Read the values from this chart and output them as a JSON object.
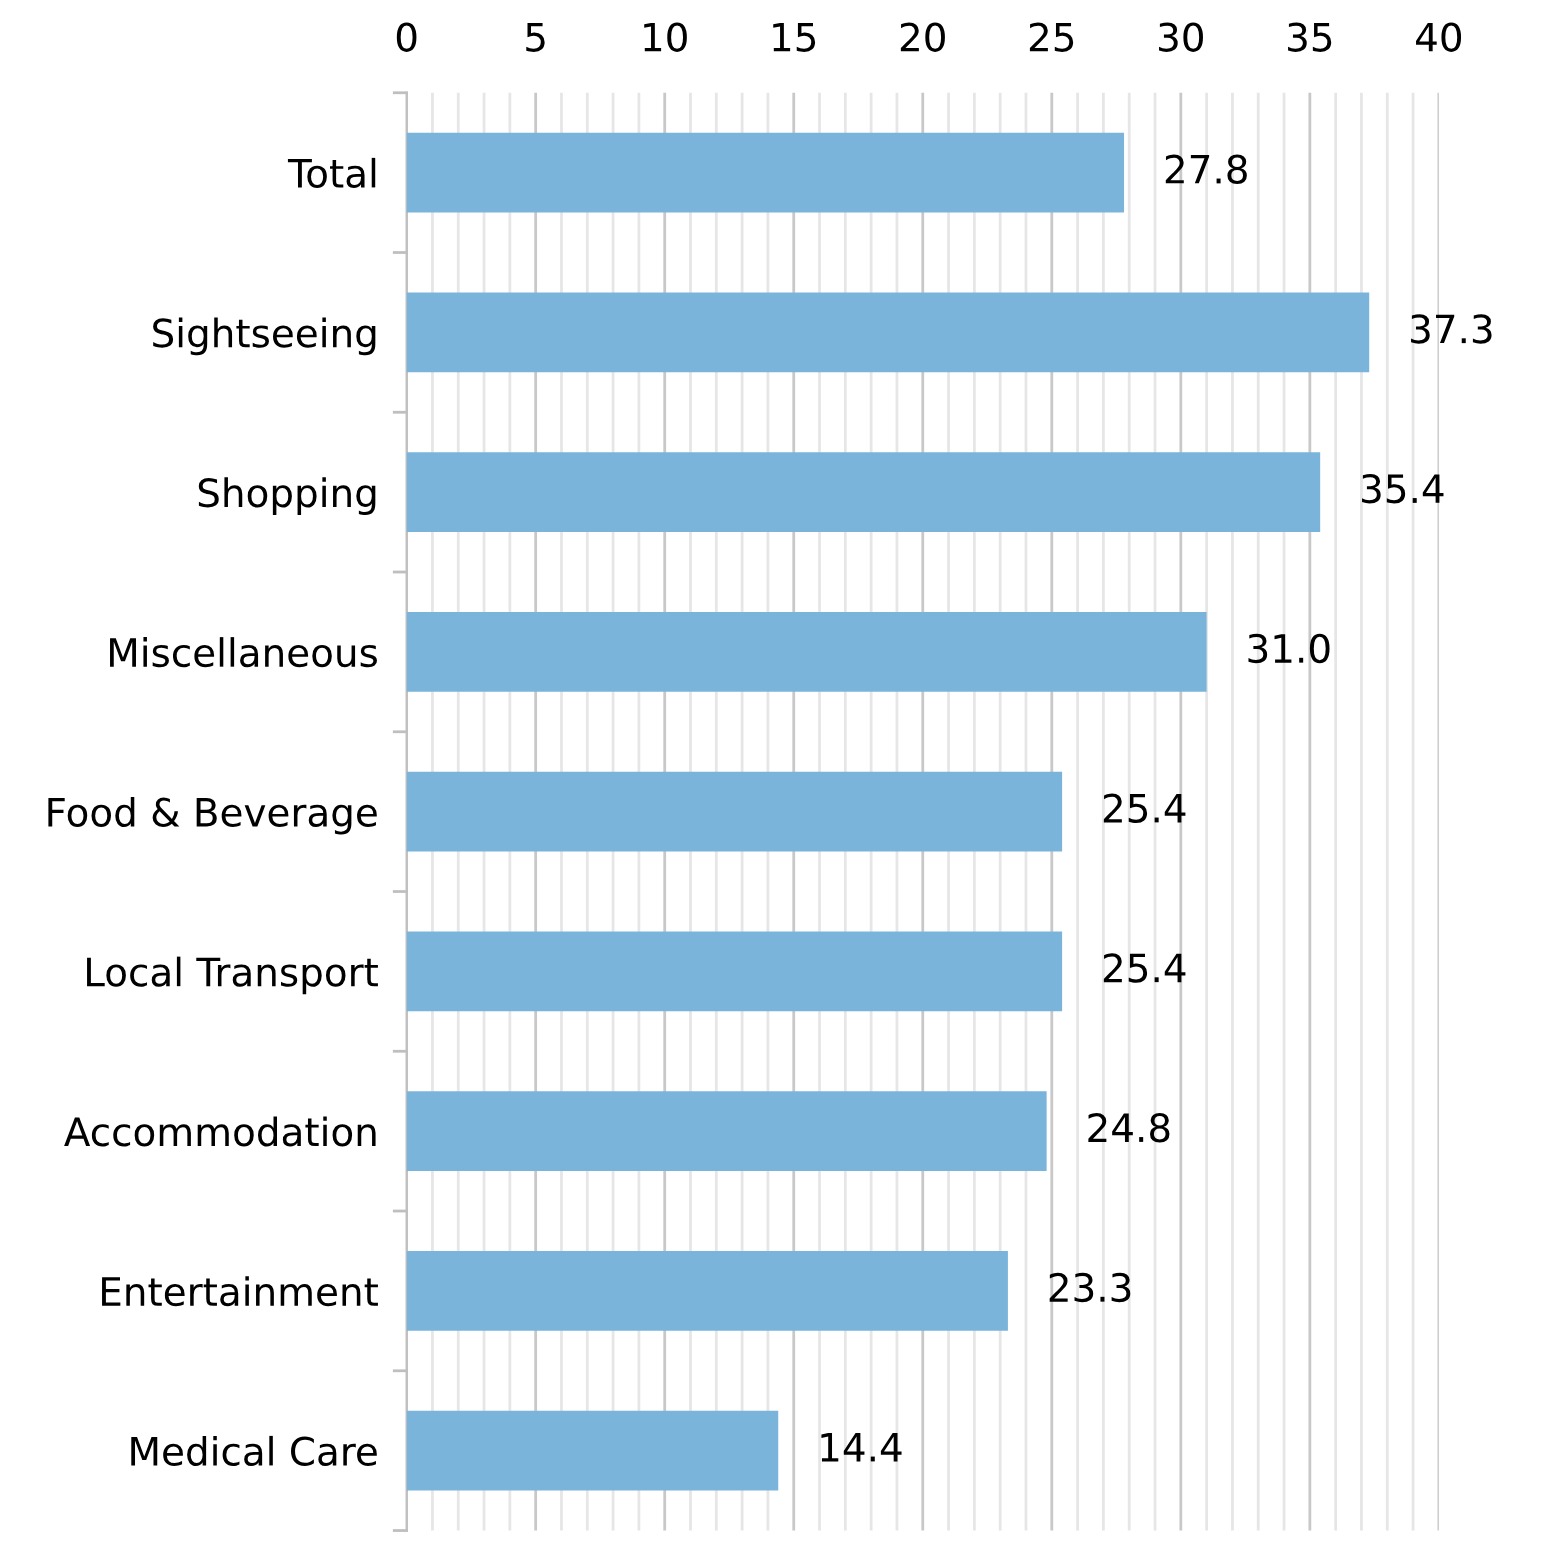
{
  "chart_data": {
    "type": "bar",
    "orientation": "horizontal",
    "categories": [
      "Total",
      "Sightseeing",
      "Shopping",
      "Miscellaneous",
      "Food & Beverage",
      "Local Transport",
      "Accommodation",
      "Entertainment",
      "Medical Care"
    ],
    "values": [
      27.8,
      37.3,
      35.4,
      31.0,
      25.4,
      25.4,
      24.8,
      23.3,
      14.4
    ],
    "color": "#7ab4db",
    "value_labels": [
      "27.8",
      "37.3",
      "35.4",
      "31.0",
      "25.4",
      "25.4",
      "24.8",
      "23.3",
      "14.4"
    ],
    "xlim": [
      0,
      40
    ],
    "xticks": [
      0,
      {
        "value": 1,
        "label": null
      },
      {
        "value": 2,
        "label": null
      },
      {
        "value": 3,
        "label": null
      },
      {
        "value": 4,
        "label": null
      },
      5,
      {
        "value": 6,
        "label": null
      },
      {
        "value": 7,
        "label": null
      },
      {
        "value": 8,
        "label": null
      },
      {
        "value": 9,
        "label": null
      },
      10,
      {
        "value": 11,
        "label": null
      },
      {
        "value": 12,
        "label": null
      },
      {
        "value": 13,
        "label": null
      },
      {
        "value": 14,
        "label": null
      },
      15,
      {
        "value": 16,
        "label": null
      },
      {
        "value": 17,
        "label": null
      },
      {
        "value": 18,
        "label": null
      },
      {
        "value": 19,
        "label": null
      },
      20,
      {
        "value": 21,
        "label": null
      },
      {
        "value": 22,
        "label": null
      },
      {
        "value": 23,
        "label": null
      },
      {
        "value": 24,
        "label": null
      },
      25,
      {
        "value": 26,
        "label": null
      },
      {
        "value": 27,
        "label": null
      },
      {
        "value": 28,
        "label": null
      },
      {
        "value": 29,
        "label": null
      },
      30,
      {
        "value": 31,
        "label": null
      },
      {
        "value": 32,
        "label": null
      },
      {
        "value": 33,
        "label": null
      },
      {
        "value": 34,
        "label": null
      },
      35,
      {
        "value": 36,
        "label": null
      },
      {
        "value": 37,
        "label": null
      },
      {
        "value": 38,
        "label": null
      },
      {
        "value": 39,
        "label": null
      },
      40
    ],
    "grid": "x",
    "legend": false
  }
}
